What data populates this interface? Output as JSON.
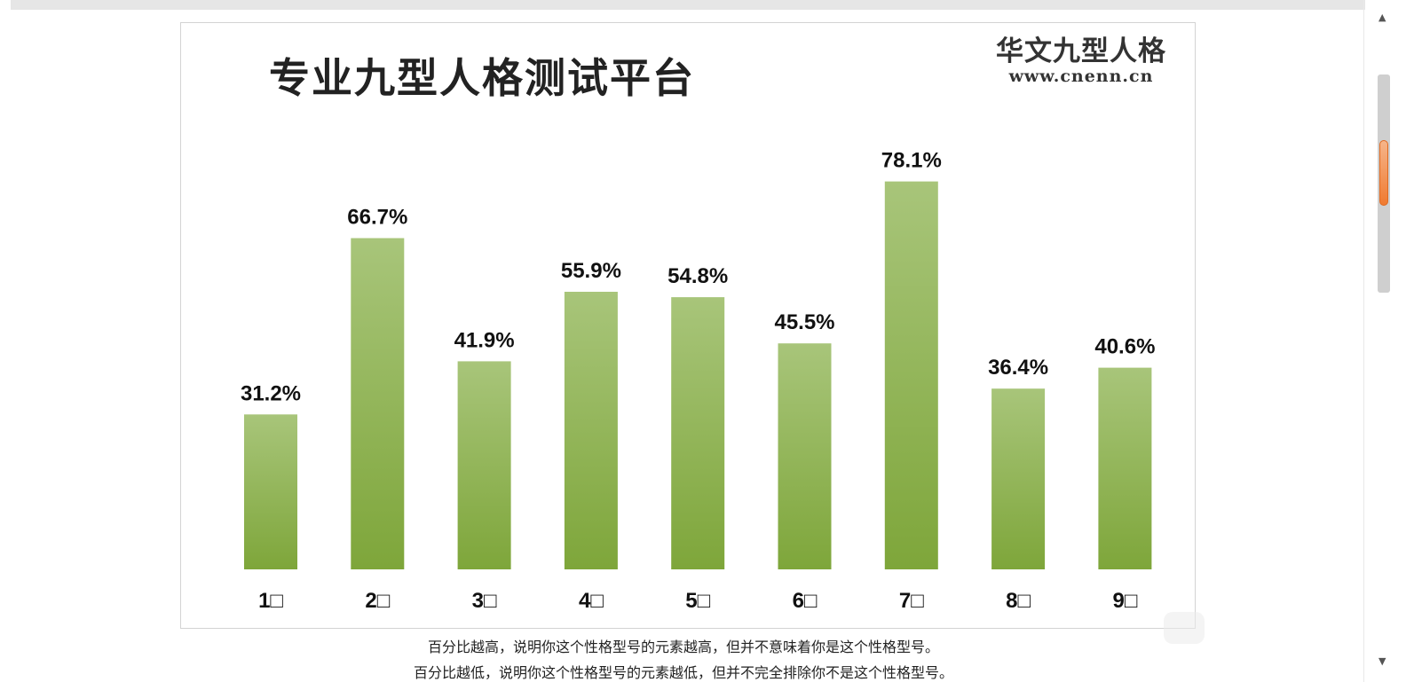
{
  "chart_data": {
    "type": "bar",
    "title": "专业九型人格测试平台",
    "categories": [
      "1□",
      "2□",
      "3□",
      "4□",
      "5□",
      "6□",
      "7□",
      "8□",
      "9□"
    ],
    "values": [
      31.2,
      66.7,
      41.9,
      55.9,
      54.8,
      45.5,
      78.1,
      36.4,
      40.6
    ],
    "value_labels": [
      "31.2%",
      "66.7%",
      "41.9%",
      "55.9%",
      "54.8%",
      "45.5%",
      "78.1%",
      "36.4%",
      "40.6%"
    ],
    "ylim": [
      0,
      100
    ],
    "grid": false,
    "bar_color_top": "#a8c57a",
    "bar_color_bottom": "#7ea63a"
  },
  "brand": {
    "name": "华文九型人格",
    "url": "www.cnenn.cn"
  },
  "captions": {
    "line1": "百分比越高，说明你这个性格型号的元素越高，但并不意味着你是这个性格型号。",
    "line2": "百分比越低，说明你这个性格型号的元素越低，但并不完全排除你不是这个性格型号。"
  },
  "scrollbar": {
    "up_arrow": "▲",
    "down_arrow": "▼"
  }
}
